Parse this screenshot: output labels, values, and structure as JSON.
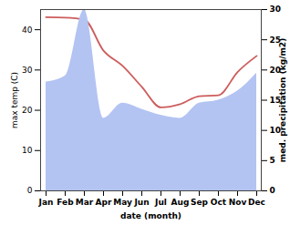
{
  "chart_data": {
    "type": "line",
    "x_label": "date (month)",
    "y_label": "max temp (C)",
    "y2_label": "med. precipitation (kg/m2)",
    "categories": [
      "Jan",
      "Feb",
      "Mar",
      "Apr",
      "May",
      "Jun",
      "Jul",
      "Aug",
      "Sep",
      "Oct",
      "Nov",
      "Dec"
    ],
    "ylim": [
      0,
      45
    ],
    "yticks": [
      0,
      10,
      20,
      30,
      40
    ],
    "y2lim": [
      0,
      30
    ],
    "y2ticks": [
      0,
      5,
      10,
      15,
      20,
      25,
      30
    ],
    "grid": false,
    "series": [
      {
        "name": "max temp",
        "type": "line",
        "color": "#cd5c5c",
        "values": [
          43.1,
          43.0,
          42.5,
          34.8,
          31.0,
          25.8,
          20.7,
          21.5,
          23.5,
          23.7,
          29.5,
          33.5
        ]
      },
      {
        "name": "med. precipitation",
        "type": "area",
        "axis": "y2",
        "color": "#b3c3f2",
        "values": [
          18,
          19,
          30,
          12,
          14.5,
          13.5,
          12.5,
          12,
          14.5,
          15,
          16.5,
          19.5
        ]
      }
    ]
  }
}
